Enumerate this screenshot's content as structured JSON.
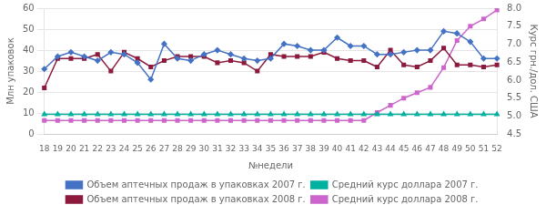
{
  "chart_data": {
    "type": "line",
    "x_label": "№недели",
    "y_label": "Млн упаковок",
    "y2_label": "Курс грн./дол. США",
    "categories": [
      18,
      19,
      20,
      21,
      22,
      23,
      24,
      25,
      26,
      27,
      28,
      29,
      30,
      31,
      32,
      33,
      34,
      35,
      36,
      37,
      38,
      39,
      40,
      41,
      42,
      43,
      44,
      45,
      46,
      47,
      48,
      49,
      50,
      51,
      52
    ],
    "series": [
      {
        "name": "Объем аптечных продаж в упаковках 2007 г.",
        "color": "#4472C4",
        "marker": "diamond",
        "line_style": "solid",
        "values": [
          31,
          37,
          39,
          37,
          35,
          39,
          38,
          34,
          26,
          43,
          36,
          35,
          38,
          40,
          38,
          36,
          35,
          36,
          43,
          42,
          40,
          40,
          46,
          42,
          42,
          38,
          38,
          39,
          40,
          40,
          49,
          48,
          44,
          36,
          36
        ]
      },
      {
        "name": "Средний курс доллара 2007 г.",
        "color": "#00B0A0",
        "marker": "triangle",
        "line_style": "solid",
        "axis": "y2",
        "values": [
          5.05,
          5.05,
          5.05,
          5.05,
          5.05,
          5.05,
          5.05,
          5.05,
          5.05,
          5.05,
          5.05,
          5.05,
          5.05,
          5.05,
          5.05,
          5.05,
          5.05,
          5.05,
          5.05,
          5.05,
          5.05,
          5.05,
          5.05,
          5.05,
          5.05,
          5.05,
          5.05,
          5.05,
          5.05,
          5.05,
          5.05,
          5.05,
          5.05,
          5.05,
          5.05
        ]
      },
      {
        "name": "Объем аптечных продаж в упаковках 2008 г.",
        "color": "#8B1A3C",
        "marker": "square",
        "line_style": "solid",
        "values": [
          22,
          36,
          36,
          36,
          38,
          30,
          39,
          36,
          32,
          35,
          37,
          37,
          37,
          34,
          35,
          34,
          30,
          38,
          37,
          37,
          37,
          39,
          36,
          35,
          35,
          32,
          40,
          33,
          32,
          35,
          41,
          33,
          33,
          32,
          33
        ]
      },
      {
        "name": "Средний курс доллара 2008 г.",
        "color": "#CC66CC",
        "marker": "square",
        "line_style": "solid",
        "axis": "y2",
        "values": [
          4.88,
          4.88,
          4.88,
          4.88,
          4.88,
          4.88,
          4.88,
          4.88,
          4.88,
          4.88,
          4.88,
          4.88,
          4.88,
          4.88,
          4.88,
          4.88,
          4.88,
          4.88,
          4.88,
          4.88,
          4.88,
          4.88,
          4.88,
          4.88,
          4.88,
          5.1,
          5.3,
          5.5,
          5.65,
          5.8,
          6.35,
          7.1,
          7.5,
          7.7,
          7.95
        ]
      }
    ],
    "ylim": [
      0,
      60
    ],
    "yticks": [
      0,
      10,
      20,
      30,
      40,
      50,
      60
    ],
    "y2lim": [
      4.5,
      8.0
    ],
    "y2ticks": [
      4.5,
      {
        "value": 5,
        "label": "5.0"
      },
      5.5,
      {
        "value": 6,
        "label": "6.0"
      },
      6.5,
      {
        "value": 7,
        "label": "7.0"
      },
      7.5,
      {
        "value": 8,
        "label": "8.0"
      }
    ],
    "grid": "y",
    "legend": "bottom"
  }
}
